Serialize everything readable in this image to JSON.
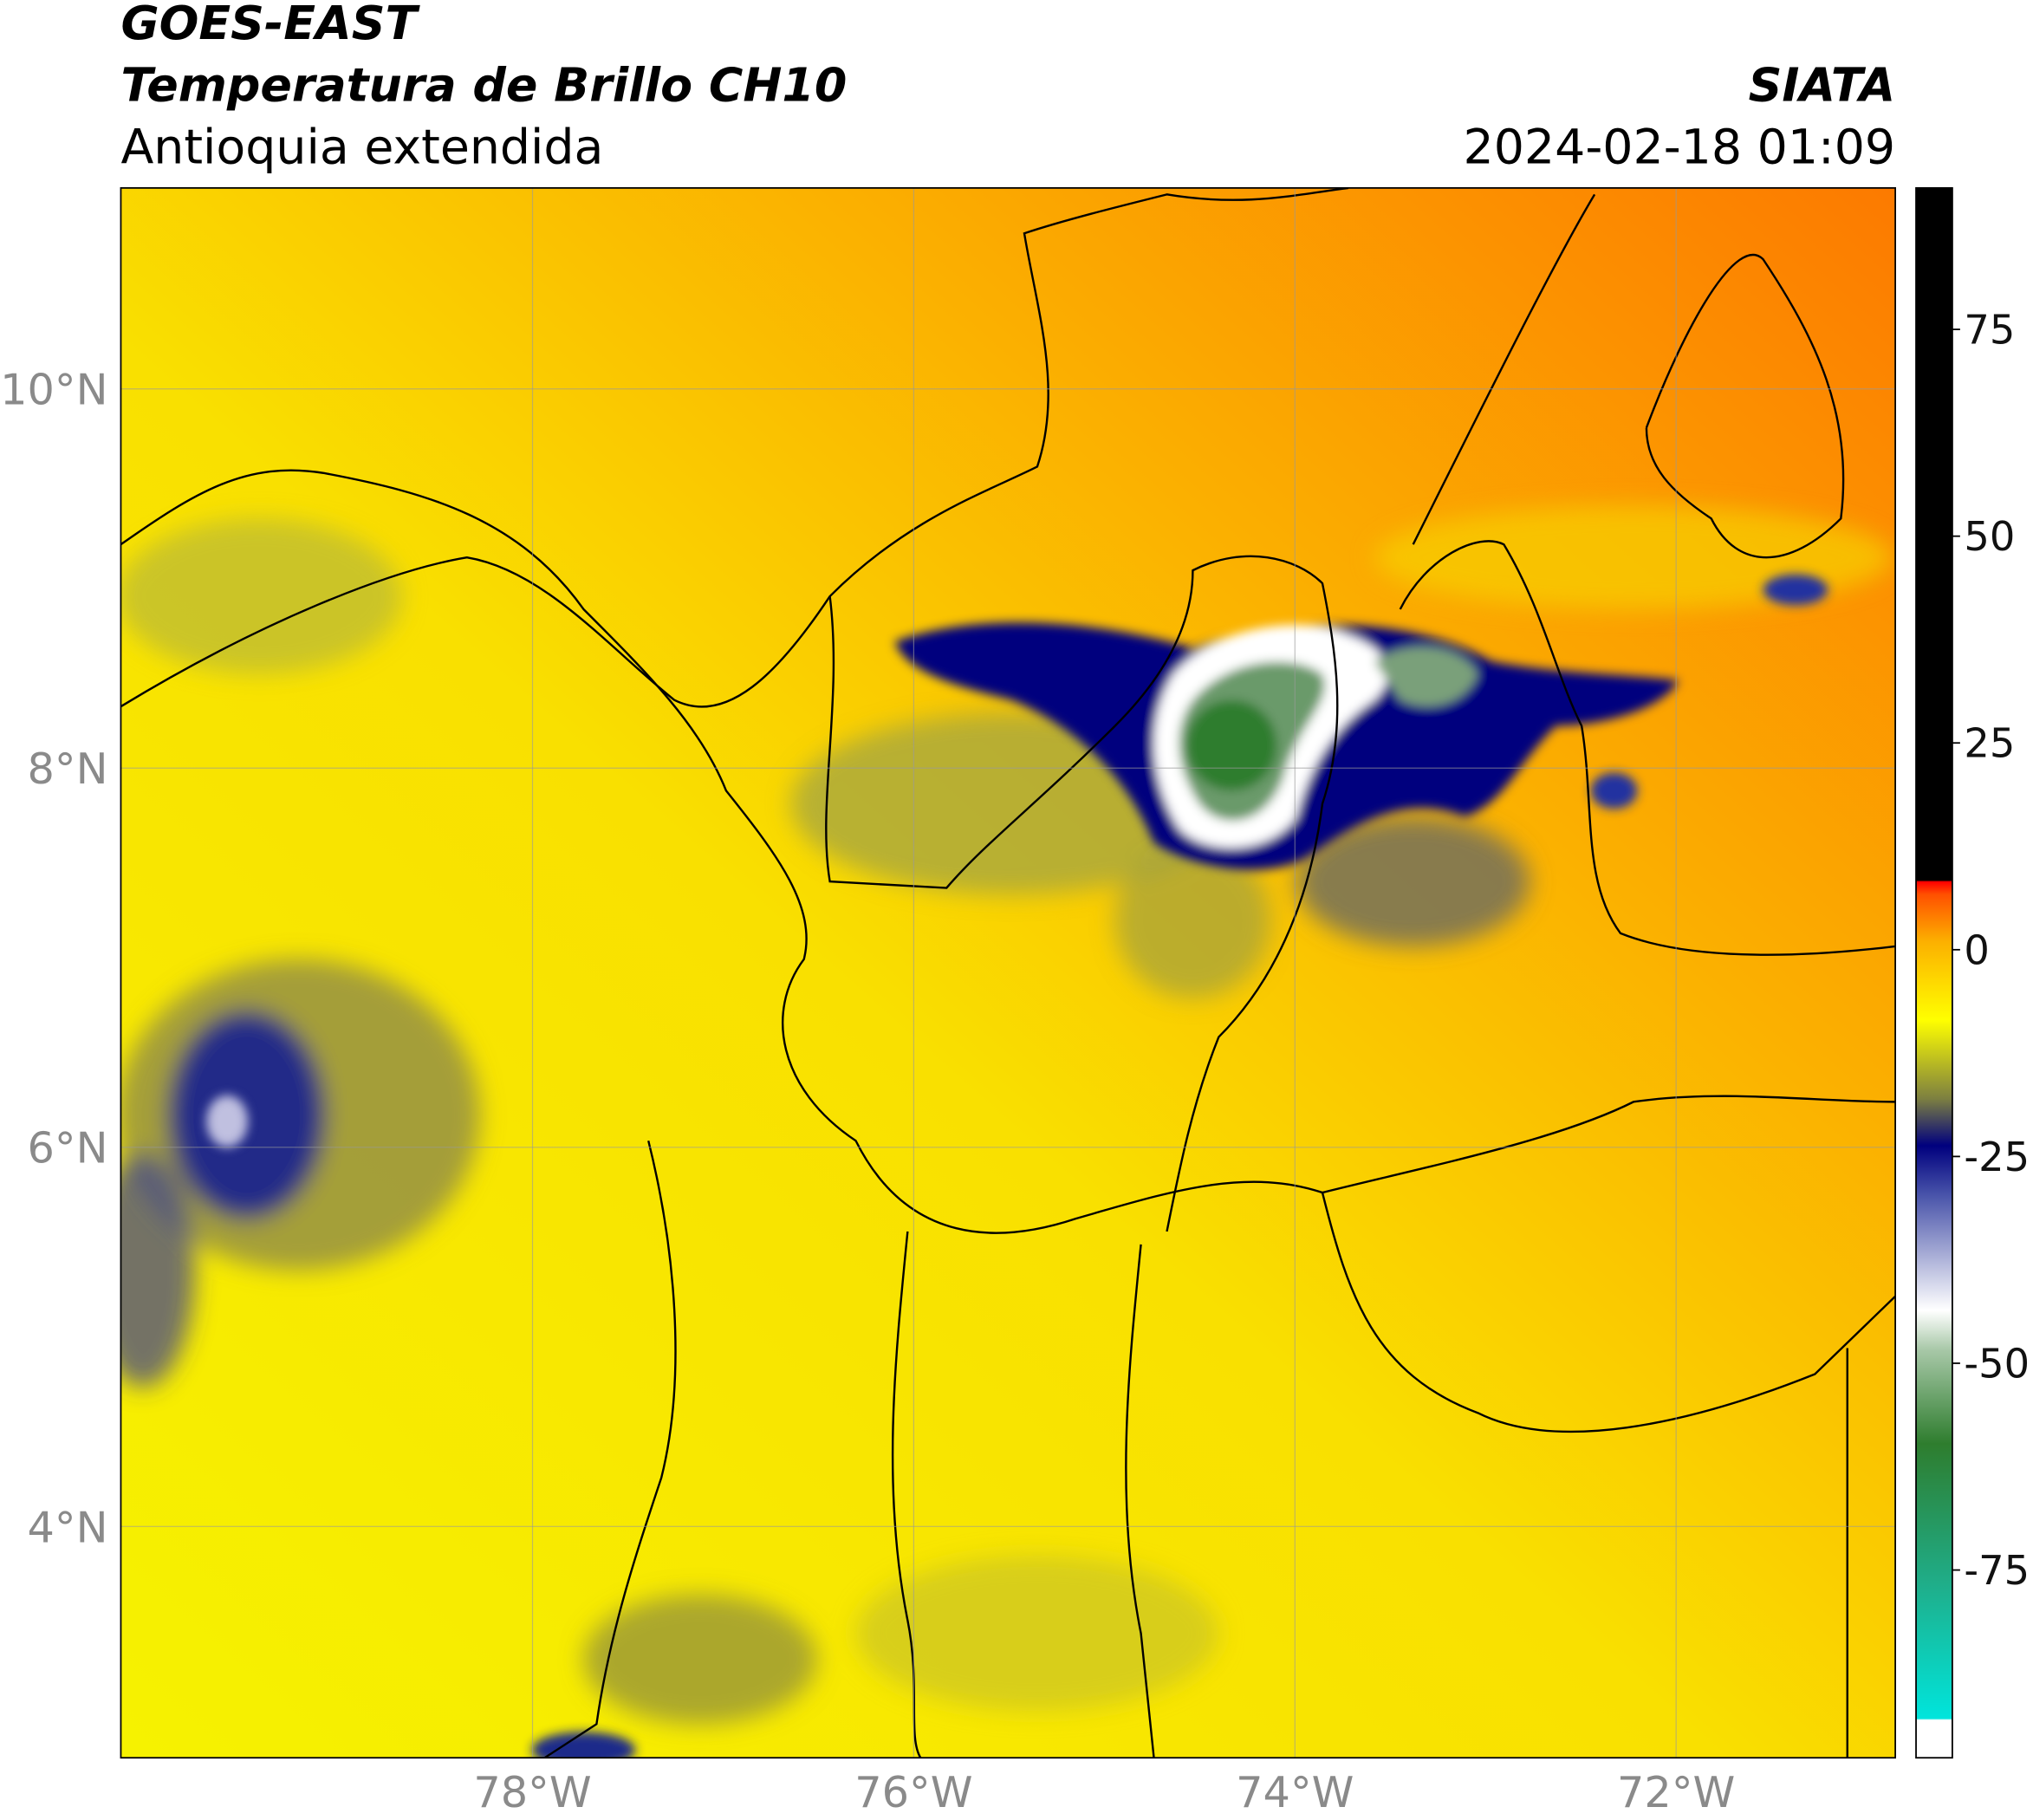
{
  "header": {
    "satellite": "GOES-EAST",
    "product": "Temperatura de Brillo CH10",
    "region": "Antioquia extendida",
    "source": "SIATA",
    "datetime": "2024-02-18 01:09"
  },
  "map": {
    "lonlim": [
      -80.16,
      -70.85
    ],
    "latlim": [
      2.78,
      11.06
    ],
    "lon_ticks": [
      {
        "value": -78,
        "label": "78°W"
      },
      {
        "value": -76,
        "label": "76°W"
      },
      {
        "value": -74,
        "label": "74°W"
      },
      {
        "value": -72,
        "label": "72°W"
      }
    ],
    "lat_ticks": [
      {
        "value": 10,
        "label": "10°N"
      },
      {
        "value": 8,
        "label": "8°N"
      },
      {
        "value": 6,
        "label": "6°N"
      },
      {
        "value": 4,
        "label": "4°N"
      }
    ]
  },
  "colorbar": {
    "lim": [
      -97.7,
      92.1
    ],
    "ticks": [
      75,
      50,
      25,
      0,
      -25,
      -50,
      -75
    ]
  }
}
